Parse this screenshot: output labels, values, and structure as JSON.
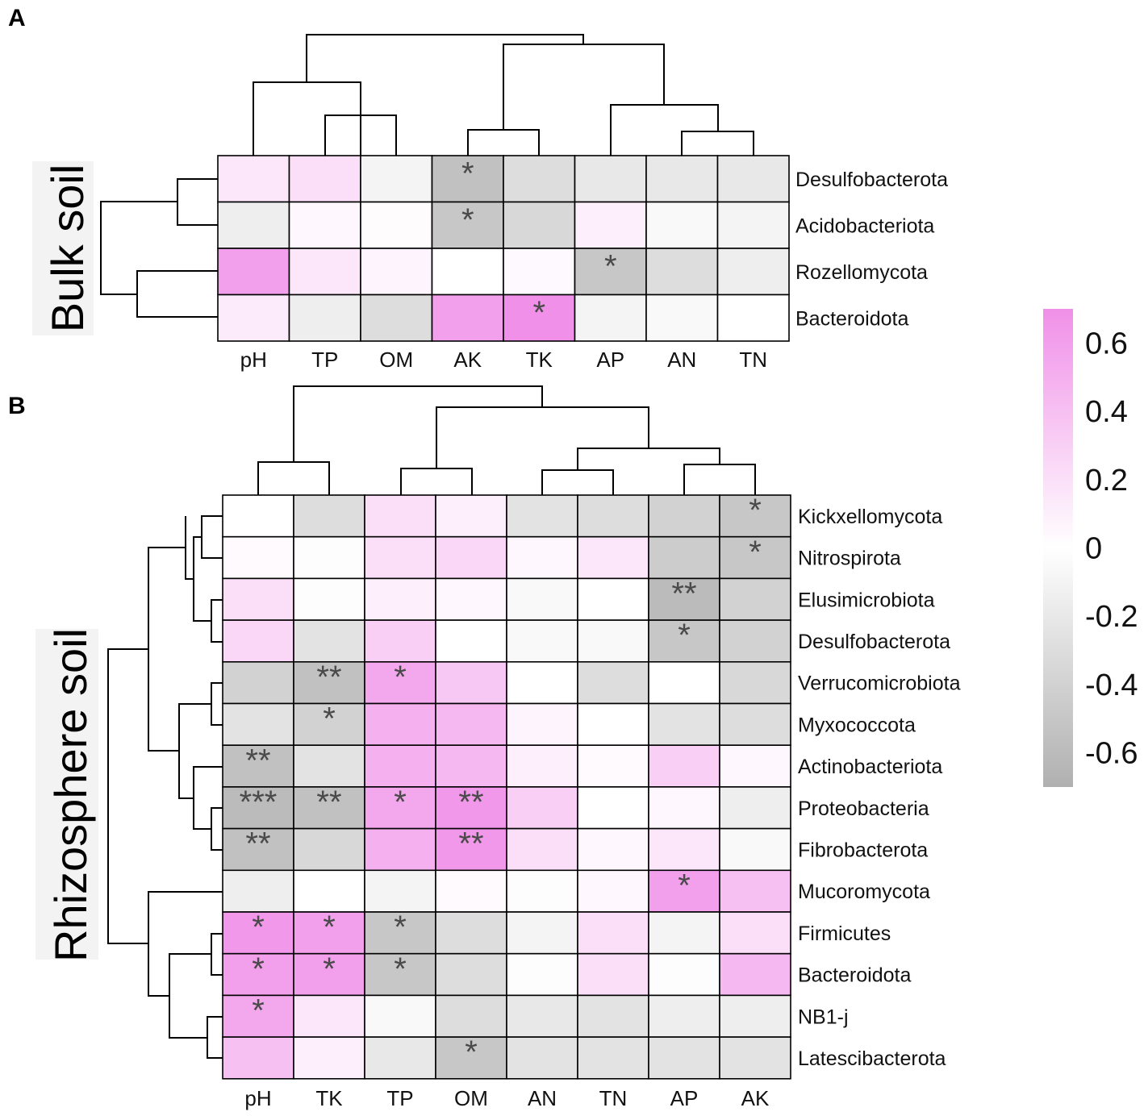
{
  "colors": {
    "positive": "#f090e8",
    "neutral": "#ffffff",
    "negative": "#b0b0b0",
    "line": "#000000",
    "star": "#4a4a4a"
  },
  "chart_data": [
    {
      "type": "heatmap",
      "panel": "A",
      "group_label": "Bulk soil",
      "columns": [
        "pH",
        "TP",
        "OM",
        "AK",
        "TK",
        "AP",
        "AN",
        "TN"
      ],
      "rows": [
        "Desulfobacterota",
        "Acidobacteriota",
        "Rozellomycota",
        "Bacteroidota"
      ],
      "values": [
        [
          0.15,
          0.2,
          -0.1,
          -0.55,
          -0.3,
          -0.2,
          -0.2,
          -0.2
        ],
        [
          -0.15,
          0.05,
          0.02,
          -0.5,
          -0.35,
          0.1,
          -0.05,
          -0.1
        ],
        [
          0.6,
          0.15,
          0.07,
          0.0,
          0.04,
          -0.5,
          -0.3,
          -0.15
        ],
        [
          0.12,
          -0.15,
          -0.3,
          0.6,
          0.7,
          -0.1,
          -0.05,
          0.0
        ]
      ],
      "significance": [
        [
          "",
          "",
          "",
          "*",
          "",
          "",
          "",
          ""
        ],
        [
          "",
          "",
          "",
          "*",
          "",
          "",
          "",
          ""
        ],
        [
          "",
          "",
          "",
          "",
          "",
          "*",
          "",
          ""
        ],
        [
          "",
          "",
          "",
          "",
          "*",
          "",
          "",
          ""
        ]
      ]
    },
    {
      "type": "heatmap",
      "panel": "B",
      "group_label": "Rhizosphere soil",
      "columns": [
        "pH",
        "TK",
        "TP",
        "OM",
        "AN",
        "TN",
        "AP",
        "AK"
      ],
      "rows": [
        "Kickxellomycota",
        "Nitrospirota",
        "Elusimicrobiota",
        "Desulfobacterota",
        "Verrucomicrobiota",
        "Myxococcota",
        "Actinobacteriota",
        "Proteobacteria",
        "Fibrobacterota",
        "Mucoromycota",
        "Firmicutes",
        "Bacteroidota",
        "NB1-j",
        "Latescibacterota"
      ],
      "values": [
        [
          0.0,
          -0.3,
          0.2,
          0.1,
          -0.25,
          -0.3,
          -0.4,
          -0.5
        ],
        [
          0.03,
          -0.02,
          0.2,
          0.25,
          0.05,
          0.15,
          -0.45,
          -0.5
        ],
        [
          0.2,
          -0.02,
          0.1,
          0.05,
          -0.05,
          0.0,
          -0.6,
          -0.4
        ],
        [
          0.25,
          -0.25,
          0.3,
          0.0,
          -0.05,
          -0.05,
          -0.5,
          -0.4
        ],
        [
          -0.4,
          -0.55,
          0.55,
          0.35,
          0.0,
          -0.3,
          0.0,
          -0.35
        ],
        [
          -0.25,
          -0.4,
          0.5,
          0.45,
          0.07,
          0.0,
          -0.25,
          -0.3
        ],
        [
          -0.55,
          -0.25,
          0.5,
          0.45,
          0.1,
          0.03,
          0.3,
          0.05
        ],
        [
          -0.6,
          -0.55,
          0.55,
          0.65,
          0.3,
          0.0,
          0.05,
          -0.15
        ],
        [
          -0.55,
          -0.35,
          0.5,
          0.65,
          0.2,
          0.05,
          0.15,
          -0.05
        ],
        [
          -0.15,
          0.0,
          -0.1,
          0.03,
          -0.02,
          0.05,
          0.6,
          0.4
        ],
        [
          0.65,
          0.6,
          -0.5,
          -0.3,
          -0.1,
          0.2,
          -0.1,
          0.2
        ],
        [
          0.6,
          0.6,
          -0.5,
          -0.3,
          -0.02,
          0.2,
          -0.02,
          0.45
        ],
        [
          0.55,
          0.15,
          -0.05,
          -0.3,
          -0.2,
          -0.25,
          -0.15,
          -0.15
        ],
        [
          0.4,
          0.1,
          -0.2,
          -0.5,
          -0.25,
          -0.25,
          -0.25,
          -0.25
        ]
      ],
      "significance": [
        [
          "",
          "",
          "",
          "",
          "",
          "",
          "",
          "*"
        ],
        [
          "",
          "",
          "",
          "",
          "",
          "",
          "",
          "*"
        ],
        [
          "",
          "",
          "",
          "",
          "",
          "",
          "**",
          ""
        ],
        [
          "",
          "",
          "",
          "",
          "",
          "",
          "*",
          ""
        ],
        [
          "",
          "**",
          "*",
          "",
          "",
          "",
          "",
          ""
        ],
        [
          "",
          "*",
          "",
          "",
          "",
          "",
          "",
          ""
        ],
        [
          "**",
          "",
          "",
          "",
          "",
          "",
          "",
          ""
        ],
        [
          "***",
          "**",
          "*",
          "**",
          "",
          "",
          "",
          ""
        ],
        [
          "**",
          "",
          "",
          "**",
          "",
          "",
          "",
          ""
        ],
        [
          "",
          "",
          "",
          "",
          "",
          "",
          "*",
          ""
        ],
        [
          "*",
          "*",
          "*",
          "",
          "",
          "",
          "",
          ""
        ],
        [
          "*",
          "*",
          "*",
          "",
          "",
          "",
          "",
          ""
        ],
        [
          "*",
          "",
          "",
          "",
          "",
          "",
          "",
          ""
        ],
        [
          "",
          "",
          "",
          "*",
          "",
          "",
          "",
          ""
        ]
      ]
    }
  ],
  "colorbar": {
    "range": [
      -0.7,
      0.7
    ],
    "ticks": [
      "0.6",
      "0.4",
      "0.2",
      "0",
      "-0.2",
      "-0.4",
      "-0.6"
    ],
    "tick_values": [
      0.6,
      0.4,
      0.2,
      0,
      -0.2,
      -0.4,
      -0.6
    ]
  }
}
